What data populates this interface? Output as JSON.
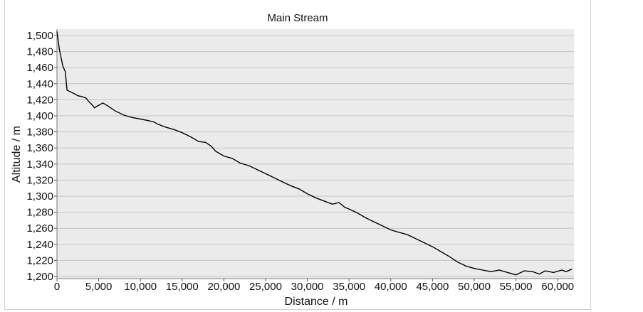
{
  "chart_data": {
    "type": "line",
    "title": "Main Stream",
    "xlabel": "Distance / m",
    "ylabel": "Altitude / m",
    "xlim": [
      0,
      62000
    ],
    "ylim": [
      1200,
      1505
    ],
    "xticks": [
      0,
      5000,
      10000,
      15000,
      20000,
      25000,
      30000,
      35000,
      40000,
      45000,
      50000,
      55000,
      60000
    ],
    "yticks": [
      1200,
      1220,
      1240,
      1260,
      1280,
      1300,
      1320,
      1340,
      1360,
      1380,
      1400,
      1420,
      1440,
      1460,
      1480,
      1500
    ],
    "grid": "horizontal",
    "plot_background": "#ebebeb",
    "line_color": "#000000",
    "series": [
      {
        "x": [
          0,
          300,
          700,
          1000,
          1200,
          1600,
          2000,
          2500,
          3000,
          3500,
          3800,
          4200,
          4500,
          4800,
          5500,
          6000,
          7000,
          8000,
          9000,
          10000,
          11000,
          11700,
          12000,
          13000,
          14000,
          15000,
          16000,
          17000,
          17800,
          18500,
          19000,
          20000,
          21000,
          22000,
          23000,
          24000,
          25000,
          26000,
          27000,
          28000,
          29000,
          30000,
          31000,
          32000,
          33000,
          33800,
          34500,
          35000,
          36000,
          37000,
          38000,
          39000,
          40000,
          41000,
          42000,
          43000,
          44000,
          45000,
          46000,
          47000,
          48000,
          49000,
          50000,
          51000,
          52000,
          53000,
          54000,
          55000,
          56000,
          57000,
          57800,
          58500,
          59500,
          60500,
          61000,
          61700
        ],
        "y": [
          1505,
          1482,
          1462,
          1455,
          1432,
          1430,
          1428,
          1425,
          1424,
          1422,
          1418,
          1414,
          1410,
          1412,
          1416,
          1413,
          1406,
          1401,
          1398,
          1396,
          1394,
          1392,
          1390,
          1386,
          1383,
          1379,
          1374,
          1368,
          1367,
          1362,
          1356,
          1350,
          1347,
          1341,
          1338,
          1333,
          1328,
          1323,
          1318,
          1313,
          1309,
          1303,
          1298,
          1294,
          1290,
          1292,
          1286,
          1284,
          1279,
          1273,
          1268,
          1263,
          1258,
          1255,
          1252,
          1247,
          1242,
          1237,
          1231,
          1225,
          1218,
          1213,
          1210,
          1208,
          1206,
          1208,
          1205,
          1202,
          1207,
          1206,
          1203,
          1207,
          1205,
          1208,
          1206,
          1209
        ]
      }
    ]
  }
}
